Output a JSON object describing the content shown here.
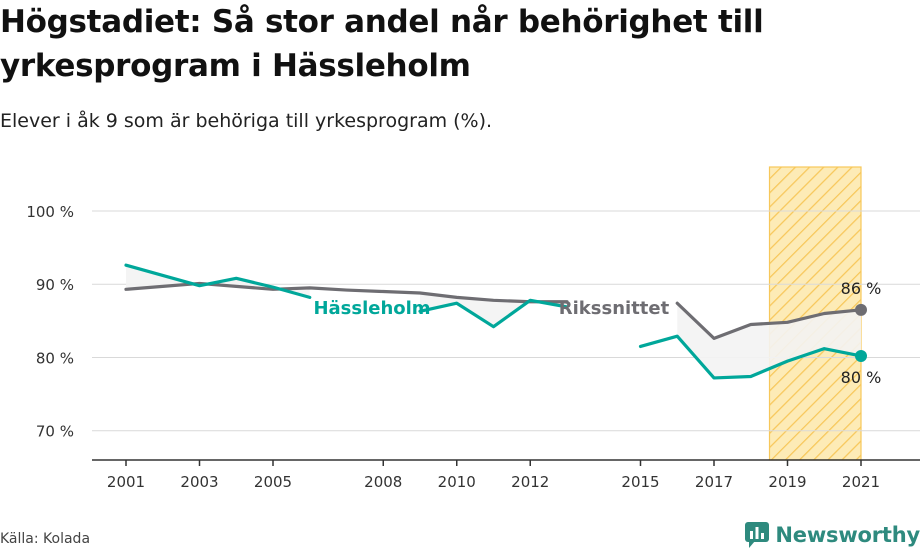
{
  "header": {
    "title": "Högstadiet: Så stor andel når behörighet till yrkesprogram i Hässleholm",
    "subtitle": "Elever i åk 9 som är behöriga till yrkesprogram (%)."
  },
  "footer": {
    "source": "Källa: Kolada",
    "brand": "Newsworthy"
  },
  "colors": {
    "local": "#00a79a",
    "national": "#6e6d72",
    "highlight_fill": "#fde7a8",
    "highlight_stroke": "#f7c75a",
    "grid": "#d9d9d9",
    "band": "#f3f3f3"
  },
  "chart_data": {
    "type": "line",
    "x": [
      2001,
      2002,
      2003,
      2004,
      2005,
      2006,
      2007,
      2008,
      2009,
      2010,
      2011,
      2012,
      2013,
      2014,
      2015,
      2016,
      2017,
      2018,
      2019,
      2020,
      2021
    ],
    "x_tick_labels": [
      "2001",
      "2003",
      "2005",
      "2008",
      "2010",
      "2012",
      "2015",
      "2017",
      "2019",
      "2021"
    ],
    "y_tick_labels": [
      "100 %",
      "90 %",
      "80 %",
      "70 %"
    ],
    "y_ticks": [
      100,
      90,
      80,
      70
    ],
    "ylim": [
      66,
      106
    ],
    "highlight_range": [
      2019,
      2021
    ],
    "series": [
      {
        "name": "Hässleholm",
        "values": [
          92.6,
          91.2,
          89.8,
          90.8,
          89.6,
          88.2,
          null,
          null,
          86.3,
          87.4,
          84.2,
          87.8,
          86.9,
          null,
          81.5,
          82.9,
          77.2,
          77.4,
          79.5,
          81.2,
          80.2
        ],
        "end_label": "80 %"
      },
      {
        "name": "Rikssnittet",
        "values": [
          89.3,
          89.7,
          90.1,
          89.7,
          89.3,
          89.5,
          89.2,
          89.0,
          88.8,
          88.2,
          87.8,
          87.6,
          87.6,
          null,
          null,
          87.4,
          82.6,
          84.5,
          84.8,
          86.0,
          86.5
        ],
        "end_label": "86 %"
      }
    ]
  }
}
